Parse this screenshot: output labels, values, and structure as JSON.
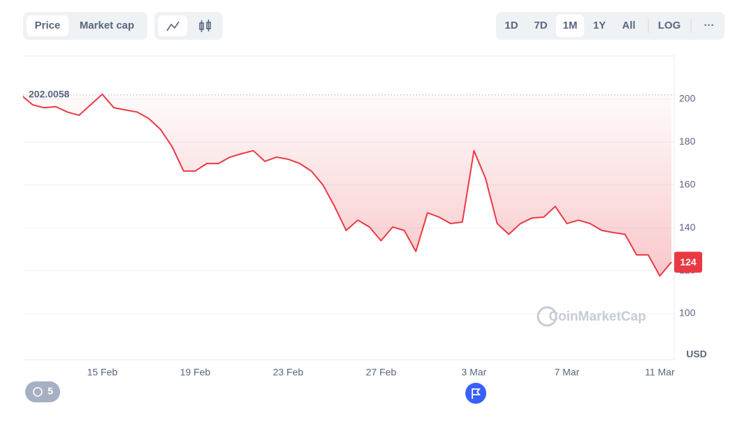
{
  "ui": {
    "tabs": [
      "Price",
      "Market cap"
    ],
    "ranges": [
      "1D",
      "7D",
      "1M",
      "1Y",
      "All"
    ],
    "log": "LOG",
    "more": "···",
    "watermark": "CoinMarketCap",
    "history_count": "5"
  },
  "chart_data": {
    "type": "line",
    "color": "#ea3943",
    "categories": [
      null,
      null,
      null,
      null,
      null,
      null,
      null,
      "15 Feb",
      null,
      null,
      null,
      null,
      null,
      null,
      null,
      "19 Feb",
      null,
      null,
      null,
      null,
      null,
      null,
      null,
      "23 Feb",
      null,
      null,
      null,
      null,
      null,
      null,
      null,
      "27 Feb",
      null,
      null,
      null,
      null,
      null,
      null,
      null,
      "3 Mar",
      null,
      null,
      null,
      null,
      null,
      null,
      null,
      "7 Mar",
      null,
      null,
      null,
      null,
      null,
      null,
      null,
      "11 Mar",
      null
    ],
    "values": [
      202,
      197.4,
      196,
      196.5,
      194,
      192.5,
      197.4,
      202.3,
      196,
      195,
      194,
      191,
      186,
      178,
      166.5,
      166.5,
      170,
      170,
      173,
      174.6,
      176,
      171,
      173,
      172,
      170,
      166.5,
      160,
      150,
      138.8,
      143.6,
      140.4,
      134,
      140.4,
      138.8,
      129,
      147,
      145,
      142,
      142.7,
      176,
      163,
      142,
      137,
      142,
      144.6,
      145,
      150,
      142,
      143.6,
      142,
      138.8,
      137.8,
      137,
      127.4,
      127.4,
      117.6,
      124
    ],
    "ylim": [
      78.5,
      220.2
    ],
    "yticks": [
      100,
      120,
      140,
      160,
      180,
      200
    ],
    "grid": true,
    "reference_value": 202.0058,
    "current_value": 124,
    "y_unit": "USD"
  }
}
